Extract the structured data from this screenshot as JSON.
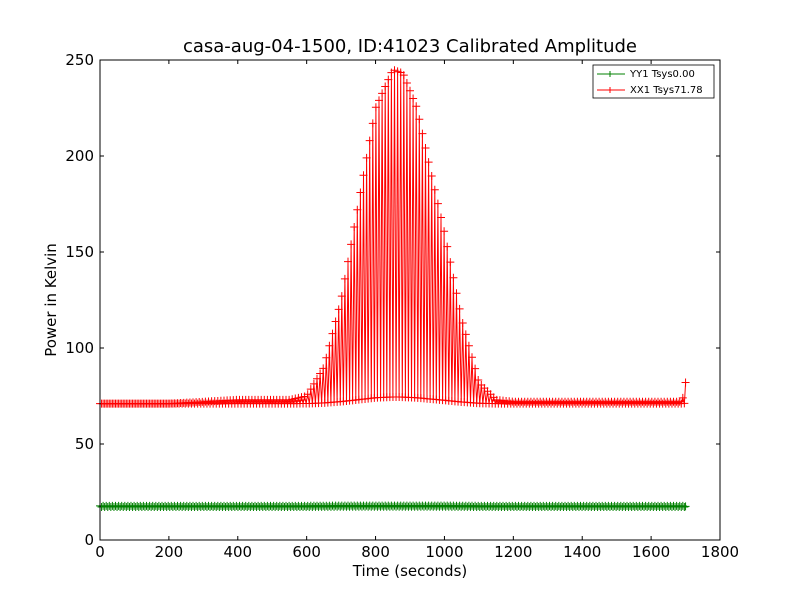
{
  "chart_data": {
    "type": "line",
    "title": "casa-aug-04-1500, ID:41023 Calibrated Amplitude",
    "xlabel": "Time (seconds)",
    "ylabel": "Power in Kelvin",
    "xlim": [
      0,
      1800
    ],
    "ylim": [
      0,
      250
    ],
    "xticks": [
      "0",
      "200",
      "400",
      "600",
      "800",
      "1000",
      "1200",
      "1400",
      "1600",
      "1800"
    ],
    "yticks": [
      "0",
      "50",
      "100",
      "150",
      "200",
      "250"
    ],
    "grid": false,
    "legend_position": "top-right",
    "marker": "plus",
    "series": [
      {
        "name": "YY1 Tsys0.00",
        "color": "#008000",
        "x": [
          0,
          100,
          200,
          300,
          400,
          500,
          600,
          700,
          800,
          900,
          1000,
          1100,
          1200,
          1300,
          1400,
          1500,
          1600,
          1700
        ],
        "y": [
          17.5,
          17.5,
          17.5,
          17.5,
          17.5,
          17.5,
          17.5,
          17.6,
          17.6,
          17.6,
          17.6,
          17.5,
          17.5,
          17.5,
          17.5,
          17.5,
          17.5,
          17.5
        ]
      },
      {
        "name": "XX1 Tsys71.78",
        "color": "#ff0000",
        "x": [
          0,
          100,
          200,
          300,
          400,
          500,
          550,
          600,
          650,
          700,
          750,
          800,
          850,
          880,
          920,
          950,
          1000,
          1050,
          1100,
          1150,
          1200,
          1300,
          1400,
          1500,
          1600,
          1690,
          1700
        ],
        "y": [
          71,
          71,
          71,
          72,
          73,
          73,
          73,
          75,
          90,
          125,
          175,
          225,
          245,
          243,
          225,
          200,
          160,
          115,
          82,
          73,
          72,
          72,
          72,
          72,
          72,
          72,
          82
        ]
      }
    ]
  }
}
